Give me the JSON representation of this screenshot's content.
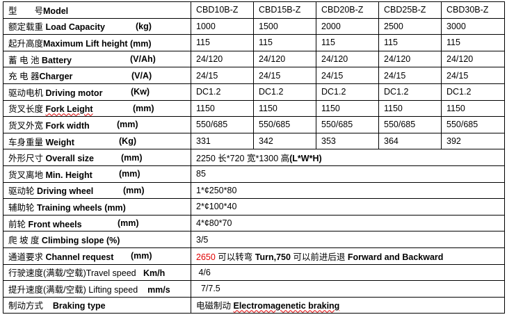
{
  "header": {
    "cn": "型　　号",
    "en": "Model",
    "models": [
      "CBD10B-Z",
      "CBD15B-Z",
      "CBD20B-Z",
      "CBD25B-Z",
      "CBD30B-Z"
    ]
  },
  "rows": [
    {
      "cn": "额定载重 ",
      "en": "Load Capacity",
      "unit": "(kg)",
      "values": [
        "1000",
        "1500",
        "2000",
        "2500",
        "3000"
      ]
    },
    {
      "cn": "起升高度",
      "en": "Maximum Lift height (mm)",
      "unit": "",
      "values": [
        "115",
        "115",
        "115",
        "115",
        "115"
      ]
    },
    {
      "cn": "蓄 电 池 ",
      "en": "Battery",
      "unit": "(V/Ah)",
      "values": [
        "24/120",
        "24/120",
        "24/120",
        "24/120",
        "24/120"
      ]
    },
    {
      "cn": "充  电  器",
      "en": "Charger",
      "unit": "(V/A)",
      "values": [
        "24/15",
        "24/15",
        "24/15",
        "24/15",
        "24/15"
      ]
    },
    {
      "cn": "驱动电机 ",
      "en": "Driving motor",
      "unit": "(Kw)",
      "values": [
        "DC1.2",
        "DC1.2",
        "DC1.2",
        "DC1.2",
        "DC1.2"
      ]
    },
    {
      "cn": "货叉长度 ",
      "en": "Fork Leight",
      "unit": "(mm)",
      "values": [
        "1150",
        "1150",
        "1150",
        "1150",
        "1150"
      ]
    },
    {
      "cn": "货叉外宽 ",
      "en": "Fork width",
      "unit": "(mm)",
      "values": [
        "550/685",
        "550/685",
        "550/685",
        "550/685",
        "550/685"
      ]
    },
    {
      "cn": "车身重量 ",
      "en": "Weight",
      "unit": "(Kg)",
      "values": [
        "331",
        "342",
        "353",
        "364",
        "392"
      ]
    }
  ],
  "merged_rows": [
    {
      "cn": "外形尺寸 ",
      "en": "Overall size",
      "unit": "(mm)",
      "value": "2250 长*720 宽*1300 高",
      "value_en": "(L*W*H)"
    },
    {
      "cn": "货叉离地 ",
      "en": "Min. Height",
      "unit": "(mm)",
      "value": "85"
    },
    {
      "cn": "驱动轮  ",
      "en": "Driving wheel",
      "unit": "(mm)",
      "value": "1*¢250*80"
    },
    {
      "cn": "辅助轮 ",
      "en": "Training wheels (mm)",
      "unit": "",
      "value": "2*¢100*40"
    },
    {
      "cn": "前轮 ",
      "en": "Front wheels",
      "unit": "(mm)",
      "value": "4*¢80*70"
    },
    {
      "cn": "爬  坡  度  ",
      "en": "Climbing slope (%)",
      "unit": "",
      "value": "3/5"
    },
    {
      "cn": "通道要求  ",
      "en": "Channel request",
      "unit": "(mm)",
      "value_red": "2650",
      "value": " 可以转弯 ",
      "value_en": "Turn,750",
      "value2": " 可以前进后退 ",
      "value_en2": "Forward and Backward"
    },
    {
      "cn": "行驶速度(满载/空载)Travel speed",
      "en": "Km/h",
      "unit": "",
      "value": " 4/6"
    },
    {
      "cn": "提升速度(满载/空载) Lifting speed ",
      "en": "mm/s",
      "unit": "",
      "value": "  7/7.5"
    },
    {
      "cn": "制动方式 ",
      "en": "Braking type",
      "unit": "",
      "value": "电磁制动 ",
      "value_en": "Electromagenetic braking"
    }
  ]
}
